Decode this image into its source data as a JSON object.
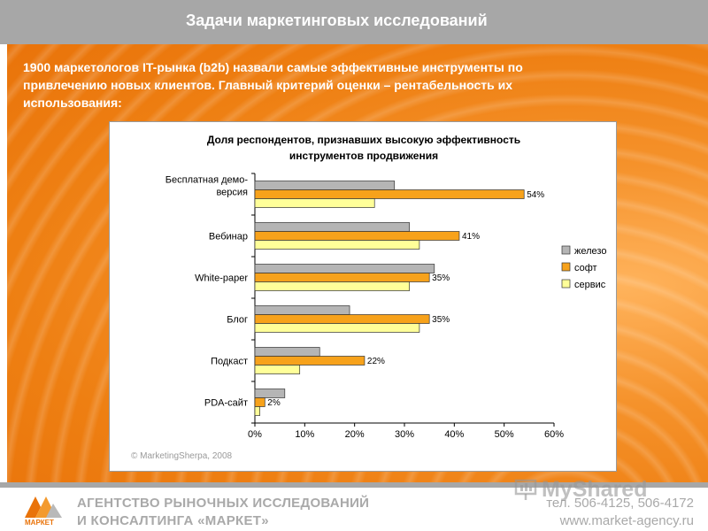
{
  "header": {
    "title": "Задачи маркетинговых исследований"
  },
  "intro": {
    "line1": "1900 маркетологов IT-рынка (b2b) назвали самые эффективные инструменты по",
    "line2": "привлечению новых клиентов. Главный критерий оценки – рентабельность их",
    "line3": "использования:"
  },
  "chart_data": {
    "type": "bar",
    "orientation": "horizontal",
    "title_lines": [
      "Доля респондентов, признавших высокую эффективность",
      "инструментов продвижения"
    ],
    "categories": [
      [
        "Бесплатная демо-",
        "версия"
      ],
      [
        "Вебинар"
      ],
      [
        "White-paper"
      ],
      [
        "Блог"
      ],
      [
        "Подкаст"
      ],
      [
        "PDA-сайт"
      ]
    ],
    "series": [
      {
        "name": "железо",
        "color": "#b5b5b5",
        "values": [
          28,
          31,
          36,
          19,
          13,
          6
        ]
      },
      {
        "name": "софт",
        "color": "#f7a21b",
        "values": [
          54,
          41,
          35,
          35,
          22,
          2
        ]
      },
      {
        "name": "сервис",
        "color": "#ffff99",
        "values": [
          24,
          33,
          31,
          33,
          9,
          1
        ]
      }
    ],
    "data_labels": [
      "54%",
      "41%",
      "35%",
      "35%",
      "22%",
      "2%"
    ],
    "data_label_series": "софт",
    "x_ticks": [
      "0%",
      "10%",
      "20%",
      "30%",
      "40%",
      "50%",
      "60%"
    ],
    "xlim": [
      0,
      60
    ],
    "grid": false,
    "legend": "right",
    "source": "© MarketingSherpa, 2008"
  },
  "footer": {
    "logo_text": "МАРКЕТ",
    "agency_line1": "АГЕНТСТВО РЫНОЧНЫХ ИССЛЕДОВАНИЙ",
    "agency_line2": "И КОНСАЛТИНГА «МАРКЕТ»",
    "phone": "тел. 506-4125, 506-4172",
    "website": "www.market-agency.ru",
    "watermark": "MyShared"
  }
}
